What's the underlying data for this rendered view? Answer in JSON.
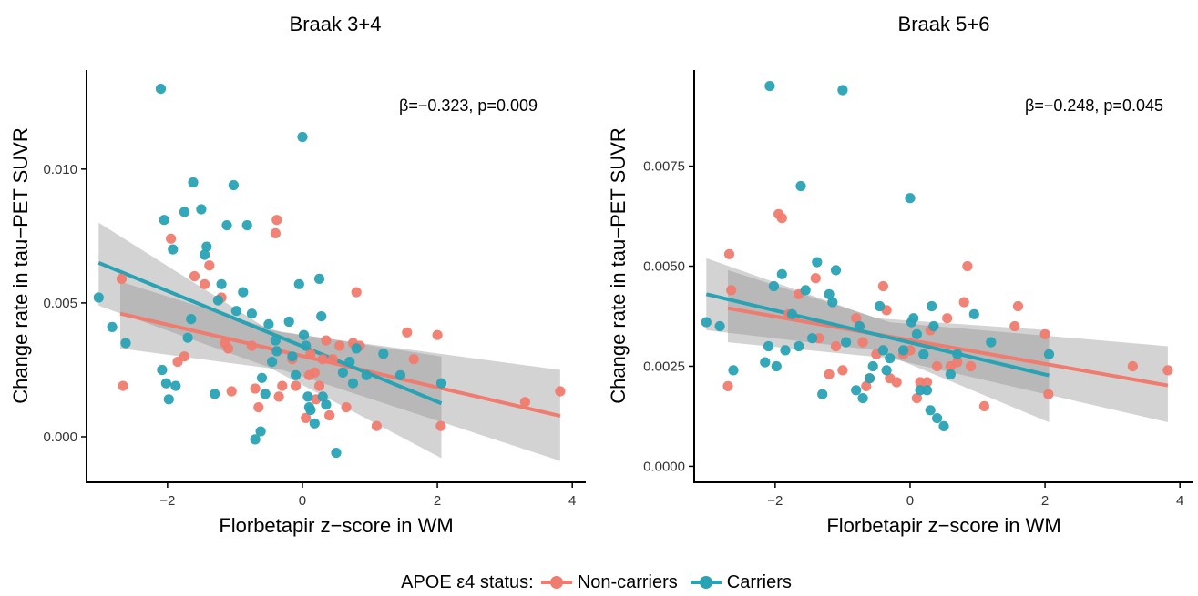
{
  "figure": {
    "legend_title": "APOE ε4 status:",
    "legend": [
      {
        "label": "Non-carriers",
        "color": "#F07B6F"
      },
      {
        "label": "Carriers",
        "color": "#29A2B4"
      }
    ]
  },
  "chart_data": [
    {
      "type": "scatter",
      "title": "Braak 3+4",
      "xlabel": "Florbetapir z−score in WM",
      "ylabel": "Change rate in tau−PET SUVR",
      "annotation": "β=−0.323, p=0.009",
      "xlim": [
        -3.2,
        4.2
      ],
      "ylim": [
        -0.0017,
        0.0137
      ],
      "xticks": [
        -2,
        0,
        2,
        4
      ],
      "xtick_labels": [
        "−2",
        "0",
        "2",
        "4"
      ],
      "yticks": [
        0.0,
        0.005,
        0.01
      ],
      "ytick_labels": [
        "0.000",
        "0.005",
        "0.010"
      ],
      "grid": false,
      "series": [
        {
          "name": "Non-carriers",
          "color": "#F07B6F",
          "fit": {
            "x": [
              -2.7,
              3.82
            ],
            "y": [
              0.0046,
              0.00078
            ]
          },
          "ci": {
            "x": [
              -2.7,
              -0.3,
              3.82
            ],
            "upper": [
              0.0058,
              0.0039,
              0.0025
            ],
            "lower": [
              0.0033,
              0.0025,
              -0.0009
            ]
          },
          "points": [
            [
              -2.68,
              0.0059
            ],
            [
              -2.66,
              0.0019
            ],
            [
              -1.95,
              0.0074
            ],
            [
              -1.85,
              0.0028
            ],
            [
              -1.75,
              0.003
            ],
            [
              -1.6,
              0.006
            ],
            [
              -1.45,
              0.0057
            ],
            [
              -1.38,
              0.0064
            ],
            [
              -1.2,
              0.0052
            ],
            [
              -1.15,
              0.0035
            ],
            [
              -1.1,
              0.0033
            ],
            [
              -1.05,
              0.0017
            ],
            [
              -0.75,
              0.0034
            ],
            [
              -0.7,
              0.0018
            ],
            [
              -0.65,
              0.0011
            ],
            [
              -0.4,
              0.0076
            ],
            [
              -0.38,
              0.0081
            ],
            [
              -0.35,
              0.0015
            ],
            [
              -0.3,
              0.0019
            ],
            [
              -0.15,
              0.0029
            ],
            [
              -0.1,
              0.0019
            ],
            [
              0.05,
              0.0007
            ],
            [
              0.1,
              0.0023
            ],
            [
              0.12,
              0.0031
            ],
            [
              0.18,
              0.0024
            ],
            [
              0.2,
              0.0014
            ],
            [
              0.25,
              0.0019
            ],
            [
              0.3,
              0.0029
            ],
            [
              0.35,
              0.0036
            ],
            [
              0.4,
              0.0008
            ],
            [
              0.45,
              0.0029
            ],
            [
              0.55,
              0.0034
            ],
            [
              0.65,
              0.0011
            ],
            [
              0.75,
              0.0035
            ],
            [
              0.8,
              0.0054
            ],
            [
              0.85,
              0.0034
            ],
            [
              1.1,
              0.0004
            ],
            [
              1.55,
              0.0039
            ],
            [
              1.65,
              0.0029
            ],
            [
              2.0,
              0.0038
            ],
            [
              2.05,
              0.0004
            ],
            [
              3.3,
              0.0013
            ],
            [
              3.82,
              0.0017
            ]
          ]
        },
        {
          "name": "Carriers",
          "color": "#29A2B4",
          "fit": {
            "x": [
              -3.02,
              2.06
            ],
            "y": [
              0.0065,
              0.00125
            ]
          },
          "ci": {
            "x": [
              -3.02,
              -0.5,
              2.06
            ],
            "upper": [
              0.008,
              0.004,
              0.003
            ],
            "lower": [
              0.0049,
              0.0026,
              -0.0008
            ]
          },
          "points": [
            [
              -3.02,
              0.0052
            ],
            [
              -2.82,
              0.0041
            ],
            [
              -2.62,
              0.0035
            ],
            [
              -2.1,
              0.013
            ],
            [
              -2.08,
              0.0025
            ],
            [
              -2.05,
              0.0081
            ],
            [
              -2.02,
              0.002
            ],
            [
              -1.98,
              0.0014
            ],
            [
              -1.92,
              0.007
            ],
            [
              -1.88,
              0.0019
            ],
            [
              -1.75,
              0.0084
            ],
            [
              -1.7,
              0.0037
            ],
            [
              -1.65,
              0.0044
            ],
            [
              -1.62,
              0.0095
            ],
            [
              -1.5,
              0.0085
            ],
            [
              -1.45,
              0.0068
            ],
            [
              -1.42,
              0.0071
            ],
            [
              -1.3,
              0.0016
            ],
            [
              -1.25,
              0.0051
            ],
            [
              -1.2,
              0.0057
            ],
            [
              -1.12,
              0.0079
            ],
            [
              -1.02,
              0.0094
            ],
            [
              -0.98,
              0.0047
            ],
            [
              -0.88,
              0.0054
            ],
            [
              -0.82,
              0.0079
            ],
            [
              -0.75,
              0.0046
            ],
            [
              -0.7,
              -0.0001
            ],
            [
              -0.62,
              0.0002
            ],
            [
              -0.6,
              0.0022
            ],
            [
              -0.55,
              0.0016
            ],
            [
              -0.5,
              0.0042
            ],
            [
              -0.45,
              0.0028
            ],
            [
              -0.4,
              0.0036
            ],
            [
              -0.38,
              0.0032
            ],
            [
              -0.2,
              0.0043
            ],
            [
              -0.15,
              0.003
            ],
            [
              -0.1,
              0.0023
            ],
            [
              -0.05,
              0.0057
            ],
            [
              0.0,
              0.0112
            ],
            [
              0.02,
              0.0038
            ],
            [
              0.05,
              0.0034
            ],
            [
              0.08,
              0.0015
            ],
            [
              0.1,
              0.0011
            ],
            [
              0.12,
              0.001
            ],
            [
              0.18,
              0.0005
            ],
            [
              0.25,
              0.0059
            ],
            [
              0.28,
              0.0045
            ],
            [
              0.3,
              0.0015
            ],
            [
              0.35,
              0.0012
            ],
            [
              0.5,
              -0.0006
            ],
            [
              0.6,
              0.0024
            ],
            [
              0.7,
              0.0028
            ],
            [
              0.75,
              0.002
            ],
            [
              0.8,
              0.0033
            ],
            [
              0.95,
              0.0023
            ],
            [
              1.2,
              0.0031
            ],
            [
              1.45,
              0.0023
            ],
            [
              2.06,
              0.002
            ]
          ]
        }
      ]
    },
    {
      "type": "scatter",
      "title": "Braak 5+6",
      "xlabel": "Florbetapir z−score in WM",
      "ylabel": "Change rate in tau−PET SUVR",
      "annotation": "β=−0.248, p=0.045",
      "xlim": [
        -3.2,
        4.2
      ],
      "ylim": [
        -0.0004,
        0.0099
      ],
      "xticks": [
        -2,
        0,
        2,
        4
      ],
      "xtick_labels": [
        "−2",
        "0",
        "2",
        "4"
      ],
      "yticks": [
        0.0,
        0.0025,
        0.005,
        0.0075
      ],
      "ytick_labels": [
        "0.0000",
        "0.0025",
        "0.0050",
        "0.0075"
      ],
      "grid": false,
      "series": [
        {
          "name": "Non-carriers",
          "color": "#F07B6F",
          "fit": {
            "x": [
              -2.7,
              3.82
            ],
            "y": [
              0.00395,
              0.00202
            ]
          },
          "ci": {
            "x": [
              -2.7,
              -0.3,
              3.82
            ],
            "upper": [
              0.0049,
              0.0036,
              0.003
            ],
            "lower": [
              0.0031,
              0.0027,
              0.0011
            ]
          },
          "points": [
            [
              -2.68,
              0.0053
            ],
            [
              -2.65,
              0.0044
            ],
            [
              -2.7,
              0.002
            ],
            [
              -1.95,
              0.0063
            ],
            [
              -1.9,
              0.0062
            ],
            [
              -1.8,
              0.0038
            ],
            [
              -1.65,
              0.0043
            ],
            [
              -1.4,
              0.0047
            ],
            [
              -1.35,
              0.0032
            ],
            [
              -1.2,
              0.0023
            ],
            [
              -1.1,
              0.003
            ],
            [
              -1.0,
              0.0024
            ],
            [
              -0.8,
              0.0037
            ],
            [
              -0.75,
              0.0035
            ],
            [
              -0.7,
              0.0031
            ],
            [
              -0.65,
              0.002
            ],
            [
              -0.6,
              0.0022
            ],
            [
              -0.5,
              0.0028
            ],
            [
              -0.4,
              0.0045
            ],
            [
              -0.35,
              0.0039
            ],
            [
              -0.3,
              0.0022
            ],
            [
              -0.2,
              0.0021
            ],
            [
              -0.1,
              0.0028
            ],
            [
              0.0,
              0.0029
            ],
            [
              0.1,
              0.0017
            ],
            [
              0.15,
              0.0021
            ],
            [
              0.25,
              0.0021
            ],
            [
              0.3,
              0.0034
            ],
            [
              0.4,
              0.0025
            ],
            [
              0.55,
              0.0037
            ],
            [
              0.6,
              0.0025
            ],
            [
              0.7,
              0.0026
            ],
            [
              0.8,
              0.0041
            ],
            [
              0.85,
              0.005
            ],
            [
              0.9,
              0.0025
            ],
            [
              1.1,
              0.0015
            ],
            [
              1.55,
              0.0035
            ],
            [
              1.6,
              0.004
            ],
            [
              2.0,
              0.0033
            ],
            [
              2.05,
              0.0018
            ],
            [
              3.3,
              0.0025
            ],
            [
              3.82,
              0.0024
            ]
          ]
        },
        {
          "name": "Carriers",
          "color": "#29A2B4",
          "fit": {
            "x": [
              -3.02,
              2.06
            ],
            "y": [
              0.0043,
              0.00227
            ]
          },
          "ci": {
            "x": [
              -3.02,
              -0.5,
              2.06
            ],
            "upper": [
              0.0052,
              0.0037,
              0.0034
            ],
            "lower": [
              0.0034,
              0.0029,
              0.0011
            ]
          },
          "points": [
            [
              -3.02,
              0.0036
            ],
            [
              -2.82,
              0.0035
            ],
            [
              -2.62,
              0.0024
            ],
            [
              -2.15,
              0.0026
            ],
            [
              -2.1,
              0.003
            ],
            [
              -2.08,
              0.0095
            ],
            [
              -2.02,
              0.0045
            ],
            [
              -1.98,
              0.0025
            ],
            [
              -1.9,
              0.0048
            ],
            [
              -1.85,
              0.0029
            ],
            [
              -1.75,
              0.0038
            ],
            [
              -1.65,
              0.003
            ],
            [
              -1.62,
              0.007
            ],
            [
              -1.55,
              0.0044
            ],
            [
              -1.45,
              0.0032
            ],
            [
              -1.38,
              0.0051
            ],
            [
              -1.3,
              0.0018
            ],
            [
              -1.2,
              0.0043
            ],
            [
              -1.15,
              0.0041
            ],
            [
              -1.1,
              0.0049
            ],
            [
              -1.0,
              0.0094
            ],
            [
              -0.95,
              0.0031
            ],
            [
              -0.8,
              0.0019
            ],
            [
              -0.75,
              0.0035
            ],
            [
              -0.7,
              0.0017
            ],
            [
              -0.6,
              0.0022
            ],
            [
              -0.55,
              0.0025
            ],
            [
              -0.45,
              0.004
            ],
            [
              -0.4,
              0.0029
            ],
            [
              -0.35,
              0.0024
            ],
            [
              -0.3,
              0.0027
            ],
            [
              -0.1,
              0.0029
            ],
            [
              0.0,
              0.0067
            ],
            [
              0.02,
              0.0036
            ],
            [
              0.05,
              0.0037
            ],
            [
              0.1,
              0.0033
            ],
            [
              0.15,
              0.0019
            ],
            [
              0.2,
              0.0028
            ],
            [
              0.25,
              0.0019
            ],
            [
              0.3,
              0.0014
            ],
            [
              0.32,
              0.004
            ],
            [
              0.35,
              0.0035
            ],
            [
              0.4,
              0.0012
            ],
            [
              0.5,
              0.001
            ],
            [
              0.6,
              0.0023
            ],
            [
              0.7,
              0.0028
            ],
            [
              0.95,
              0.0038
            ],
            [
              1.2,
              0.0031
            ],
            [
              2.06,
              0.0028
            ]
          ]
        }
      ]
    }
  ]
}
